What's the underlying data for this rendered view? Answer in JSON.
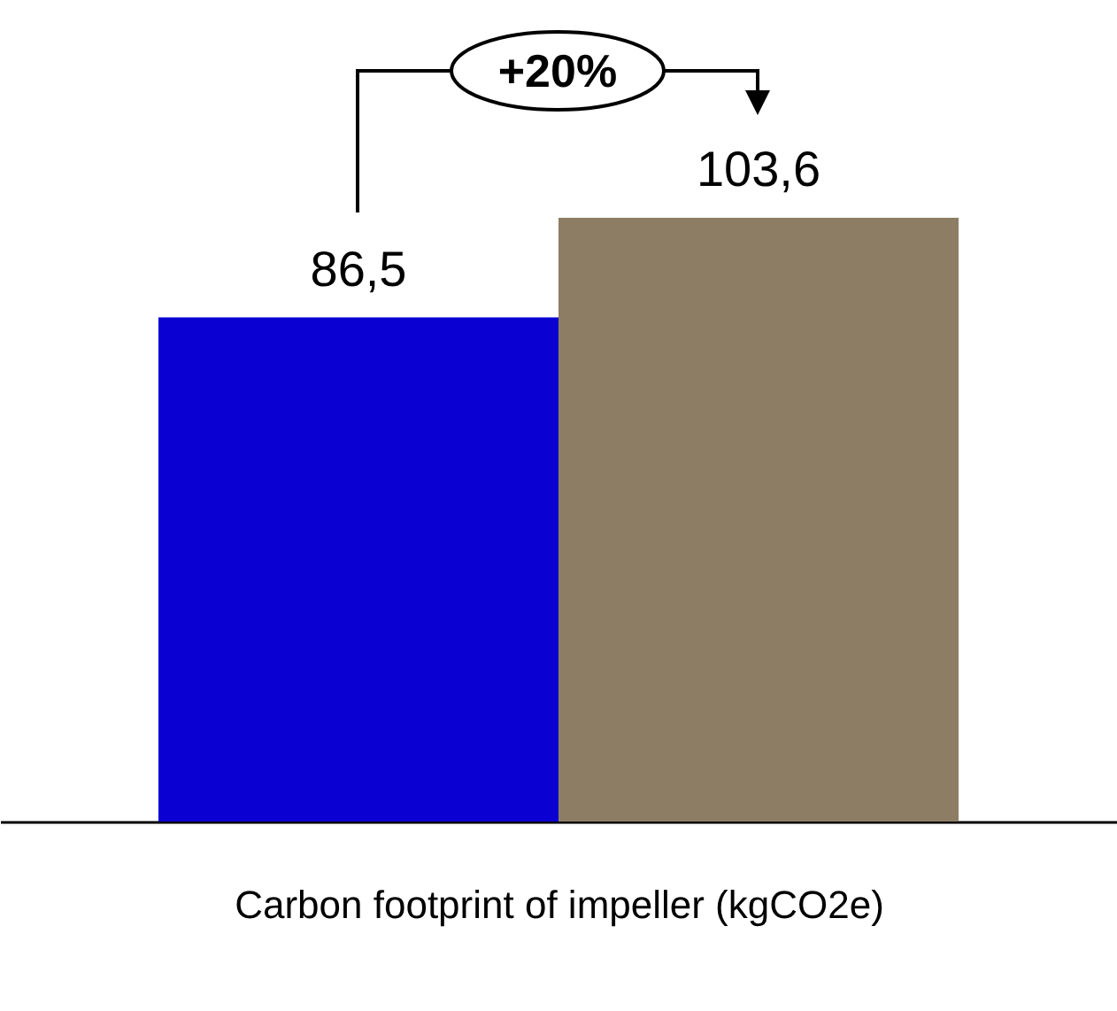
{
  "chart_data": {
    "type": "bar",
    "categories": [
      null,
      null
    ],
    "xlabel": "Carbon footprint of impeller (kgCO2e)",
    "values": [
      86.5,
      103.6
    ],
    "colors": [
      "#0a00d2",
      "#8c7d64"
    ],
    "value_labels": [
      "86,5",
      "103,6"
    ],
    "annotations": [
      "+20%"
    ],
    "grid": false,
    "legend": false
  }
}
